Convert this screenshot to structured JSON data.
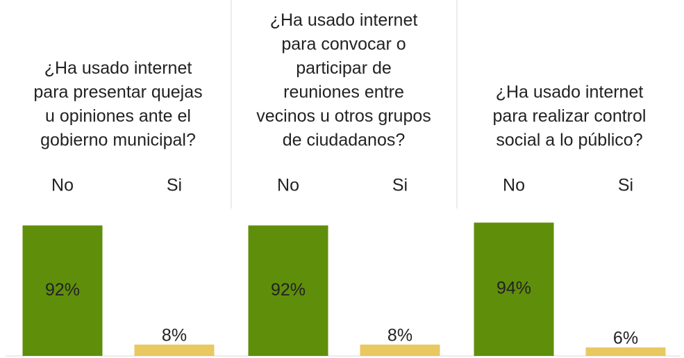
{
  "chart_data": [
    {
      "type": "bar",
      "title": [
        "¿Ha usado internet",
        "para presentar quejas",
        "u opiniones ante el",
        "gobierno municipal?"
      ],
      "categories": [
        "No",
        "Si"
      ],
      "values": [
        92,
        8
      ],
      "value_labels": [
        "92%",
        "8%"
      ],
      "colors": [
        "#5f8e0b",
        "#e9c862"
      ]
    },
    {
      "type": "bar",
      "title": [
        "¿Ha usado internet",
        "para convocar o",
        "participar de",
        "reuniones entre",
        "vecinos u otros grupos",
        "de ciudadanos?"
      ],
      "categories": [
        "No",
        "Si"
      ],
      "values": [
        92,
        8
      ],
      "value_labels": [
        "92%",
        "8%"
      ],
      "colors": [
        "#5f8e0b",
        "#e9c862"
      ]
    },
    {
      "type": "bar",
      "title": [
        "¿Ha usado internet",
        "para realizar control",
        "social a lo público?"
      ],
      "categories": [
        "No",
        "Si"
      ],
      "values": [
        94,
        6
      ],
      "value_labels": [
        "94%",
        "6%"
      ],
      "colors": [
        "#5f8e0b",
        "#e9c862"
      ]
    }
  ]
}
